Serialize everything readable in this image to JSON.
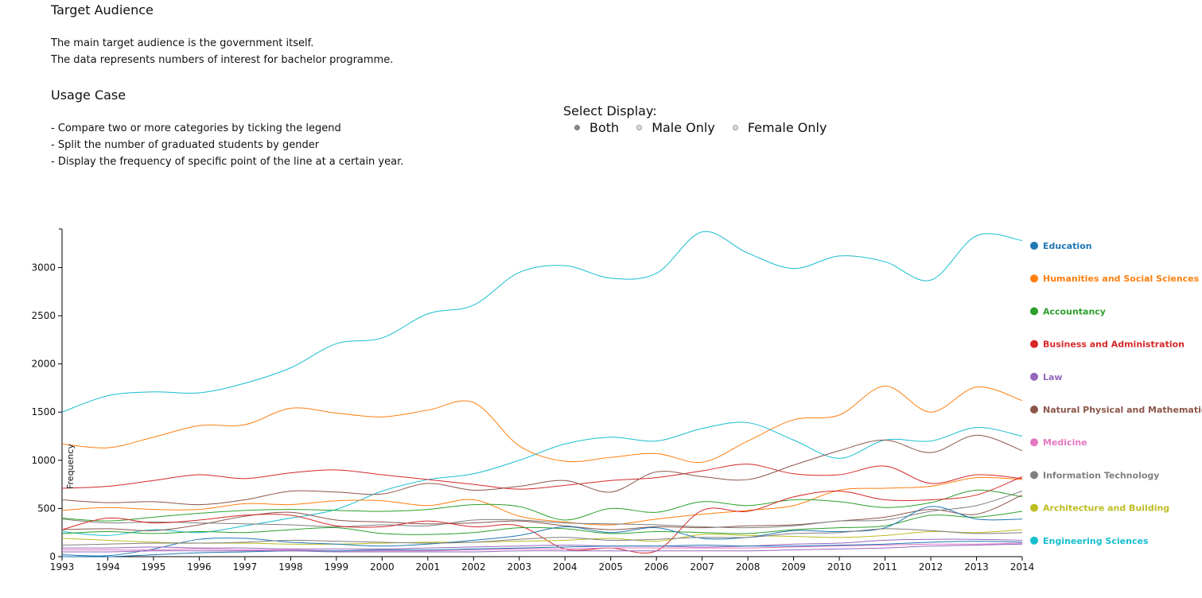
{
  "info": {
    "target_title": "Target Audience",
    "target_lines": [
      "The main target audience is the government itself.",
      "The data represents numbers of interest for bachelor programme."
    ],
    "usage_title": "Usage Case",
    "usage_lines": [
      "- Compare two or more categories by ticking the legend",
      "- Split the number of graduated students by gender",
      "- Display the frequency of specific point of the line at a certain year."
    ]
  },
  "display_select": {
    "label": "Select Display:",
    "options": [
      "Both",
      "Male Only",
      "Female Only"
    ],
    "selected": "Both"
  },
  "chart_data": {
    "type": "line",
    "title": "",
    "xlabel": "",
    "ylabel": "Frequency",
    "x": [
      1993,
      1994,
      1995,
      1996,
      1997,
      1998,
      1999,
      2000,
      2001,
      2002,
      2003,
      2004,
      2005,
      2006,
      2007,
      2008,
      2009,
      2010,
      2011,
      2012,
      2013,
      2014
    ],
    "xlim": [
      1993,
      2014
    ],
    "ylim": [
      0,
      3400
    ],
    "yticks": [
      0,
      500,
      1000,
      1500,
      2000,
      2500,
      3000
    ],
    "grid": false,
    "legend_position": "right",
    "legend": [
      {
        "name": "Education",
        "color": "#1f77b4"
      },
      {
        "name": "Humanities and Social Sciences",
        "color": "#ff7f0e"
      },
      {
        "name": "Accountancy",
        "color": "#2ca02c"
      },
      {
        "name": "Business and Administration",
        "color": "#d62728"
      },
      {
        "name": "Law",
        "color": "#9467bd"
      },
      {
        "name": "Natural Physical and Mathematical",
        "color": "#8c564b"
      },
      {
        "name": "Medicine",
        "color": "#e377c2"
      },
      {
        "name": "Information Technology",
        "color": "#7f7f7f"
      },
      {
        "name": "Architecture and Building",
        "color": "#bcbd22"
      },
      {
        "name": "Engineering Sciences",
        "color": "#17becf"
      }
    ],
    "series": [
      {
        "color": "#17becf",
        "values": [
          1500,
          1670,
          1710,
          1700,
          1800,
          1960,
          2210,
          2270,
          2520,
          2610,
          2950,
          3020,
          2890,
          2940,
          3370,
          3150,
          2990,
          3120,
          3060,
          2870,
          3330,
          3280
        ]
      },
      {
        "color": "#ff7f0e",
        "values": [
          1170,
          1130,
          1240,
          1360,
          1370,
          1540,
          1490,
          1450,
          1520,
          1600,
          1150,
          990,
          1030,
          1070,
          980,
          1200,
          1420,
          1470,
          1770,
          1500,
          1760,
          1620
        ]
      },
      {
        "color": "#17becf",
        "values": [
          260,
          220,
          280,
          250,
          320,
          400,
          490,
          680,
          800,
          860,
          1000,
          1170,
          1240,
          1200,
          1330,
          1390,
          1210,
          1020,
          1210,
          1200,
          1340,
          1250
        ]
      },
      {
        "color": "#d62728",
        "values": [
          710,
          730,
          790,
          850,
          810,
          870,
          900,
          850,
          800,
          750,
          700,
          740,
          790,
          820,
          890,
          960,
          860,
          850,
          940,
          760,
          850,
          810
        ]
      },
      {
        "color": "#8c564b",
        "values": [
          590,
          560,
          570,
          540,
          590,
          680,
          670,
          650,
          760,
          690,
          730,
          790,
          670,
          880,
          830,
          800,
          950,
          1100,
          1210,
          1080,
          1260,
          1100
        ]
      },
      {
        "color": "#ff7f0e",
        "values": [
          480,
          510,
          490,
          490,
          550,
          540,
          580,
          580,
          530,
          590,
          420,
          360,
          330,
          390,
          440,
          480,
          530,
          690,
          710,
          730,
          820,
          800
        ]
      },
      {
        "color": "#2ca02c",
        "values": [
          400,
          370,
          410,
          450,
          480,
          490,
          480,
          470,
          490,
          540,
          520,
          380,
          500,
          460,
          570,
          530,
          590,
          570,
          510,
          560,
          690,
          620
        ]
      },
      {
        "color": "#8c564b",
        "values": [
          280,
          290,
          270,
          330,
          420,
          460,
          380,
          360,
          340,
          350,
          370,
          320,
          280,
          310,
          300,
          320,
          330,
          370,
          410,
          490,
          440,
          640
        ]
      },
      {
        "color": "#7f7f7f",
        "values": [
          390,
          350,
          360,
          350,
          340,
          330,
          310,
          330,
          320,
          380,
          380,
          350,
          340,
          330,
          310,
          300,
          320,
          370,
          380,
          470,
          530,
          680
        ]
      },
      {
        "color": "#d62728",
        "values": [
          280,
          400,
          350,
          380,
          430,
          430,
          320,
          310,
          370,
          310,
          320,
          80,
          90,
          60,
          480,
          470,
          620,
          680,
          590,
          590,
          640,
          830
        ]
      },
      {
        "color": "#2ca02c",
        "values": [
          240,
          260,
          240,
          260,
          250,
          280,
          300,
          240,
          230,
          250,
          300,
          290,
          240,
          260,
          250,
          240,
          280,
          300,
          320,
          430,
          410,
          470
        ]
      },
      {
        "color": "#bcbd22",
        "values": [
          190,
          170,
          150,
          140,
          140,
          130,
          130,
          140,
          150,
          150,
          160,
          170,
          190,
          160,
          230,
          220,
          210,
          200,
          220,
          260,
          250,
          280
        ]
      },
      {
        "color": "#1f77b4",
        "values": [
          20,
          10,
          80,
          180,
          190,
          150,
          130,
          110,
          130,
          170,
          220,
          310,
          250,
          300,
          190,
          200,
          270,
          260,
          300,
          520,
          390,
          390
        ]
      },
      {
        "color": "#7f7f7f",
        "values": [
          120,
          130,
          140,
          140,
          150,
          170,
          160,
          150,
          140,
          150,
          180,
          200,
          170,
          180,
          200,
          200,
          240,
          250,
          290,
          270,
          240,
          250
        ]
      },
      {
        "color": "#9467bd",
        "values": [
          90,
          90,
          100,
          90,
          90,
          80,
          80,
          80,
          90,
          100,
          110,
          120,
          110,
          110,
          100,
          110,
          130,
          140,
          170,
          180,
          180,
          170
        ]
      },
      {
        "color": "#e377c2",
        "values": [
          70,
          70,
          70,
          80,
          70,
          70,
          60,
          60,
          60,
          70,
          80,
          80,
          90,
          90,
          90,
          90,
          100,
          110,
          120,
          130,
          130,
          140
        ]
      },
      {
        "color": "#1f77b4",
        "values": [
          0,
          0,
          20,
          40,
          50,
          60,
          60,
          70,
          70,
          80,
          90,
          100,
          110,
          110,
          120,
          110,
          110,
          120,
          130,
          150,
          160,
          150
        ]
      },
      {
        "color": "#9467bd",
        "values": [
          50,
          50,
          60,
          60,
          60,
          60,
          50,
          50,
          50,
          50,
          60,
          60,
          60,
          60,
          60,
          60,
          70,
          80,
          90,
          110,
          120,
          130
        ]
      }
    ]
  }
}
